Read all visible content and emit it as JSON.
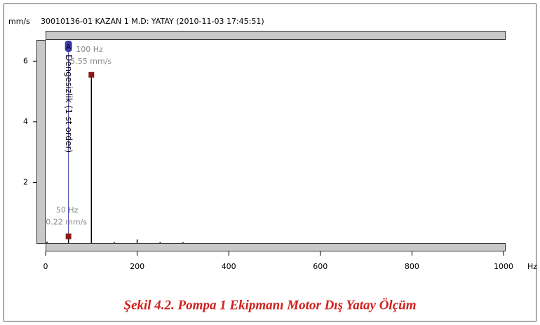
{
  "chart_data": {
    "type": "spectrum",
    "y_unit": "mm/s",
    "title": "30010136-01  KAZAN 1 M.D: YATAY (2010-11-03 17:45:51)",
    "x_unit": "Hz",
    "xlim": [
      0,
      1000
    ],
    "xticks": [
      0,
      200,
      400,
      600,
      800,
      1000
    ],
    "ylim": [
      0,
      6.7
    ],
    "yticks": [
      2,
      4,
      6
    ],
    "color": "#000000",
    "x": [
      3,
      50,
      100,
      150,
      200,
      250,
      300
    ],
    "values": [
      0.05,
      0.22,
      5.55,
      0.03,
      0.12,
      0.03,
      0.03
    ],
    "markers": [
      {
        "x": 100,
        "value": 5.55,
        "x_label": "100 Hz",
        "value_label": "5.55 mm/s"
      },
      {
        "x": 50,
        "value": 0.22,
        "x_label": "50 Hz",
        "value_label": "0.22 mm/s"
      }
    ],
    "marker_color": "#8b1a1a",
    "cursor": {
      "x": 50,
      "label": "A",
      "text": "Dengesizlik (1 st order)",
      "color": "#3a3aa8"
    },
    "caption": "Şekil 4.2. Pompa 1 Ekipmanı Motor Dış Yatay Ölçüm"
  }
}
